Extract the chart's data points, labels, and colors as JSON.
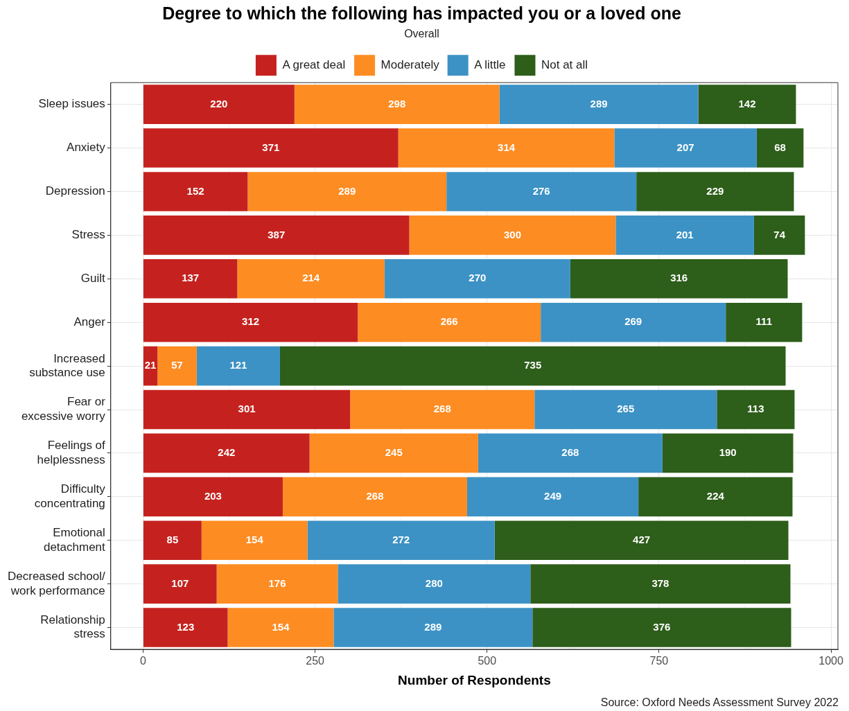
{
  "chart_data": {
    "type": "bar",
    "orientation": "horizontal",
    "stacked": true,
    "title": "Degree to which the following has impacted you or a loved one",
    "subtitle": "Overall",
    "xlabel": "Number of Respondents",
    "categories": [
      "Sleep issues",
      "Anxiety",
      "Depression",
      "Stress",
      "Guilt",
      "Anger",
      "Increased substance use",
      "Fear or excessive worry",
      "Feelings of helplessness",
      "Difficulty concentrating",
      "Emotional detachment",
      "Decreased school/ work performance",
      "Relationship stress"
    ],
    "series": [
      {
        "name": "A great deal",
        "color": "#c5221f",
        "values": [
          220,
          371,
          152,
          387,
          137,
          312,
          21,
          301,
          242,
          203,
          85,
          107,
          123
        ]
      },
      {
        "name": "Moderately",
        "color": "#fd8c22",
        "values": [
          298,
          314,
          289,
          300,
          214,
          266,
          57,
          268,
          245,
          268,
          154,
          176,
          154
        ]
      },
      {
        "name": "A little",
        "color": "#3c92c5",
        "values": [
          289,
          207,
          276,
          201,
          270,
          269,
          121,
          265,
          268,
          249,
          272,
          280,
          289
        ]
      },
      {
        "name": "Not at all",
        "color": "#2d5e1a",
        "values": [
          142,
          68,
          229,
          74,
          316,
          111,
          735,
          113,
          190,
          224,
          427,
          378,
          376
        ]
      }
    ],
    "xlim": [
      -47,
      1010
    ],
    "xticks": [
      0,
      250,
      500,
      750,
      1000
    ],
    "grid": true,
    "legend": "top",
    "data_labels": true,
    "annotations": [
      "Source: Oxford Needs Assessment Survey 2022"
    ]
  }
}
